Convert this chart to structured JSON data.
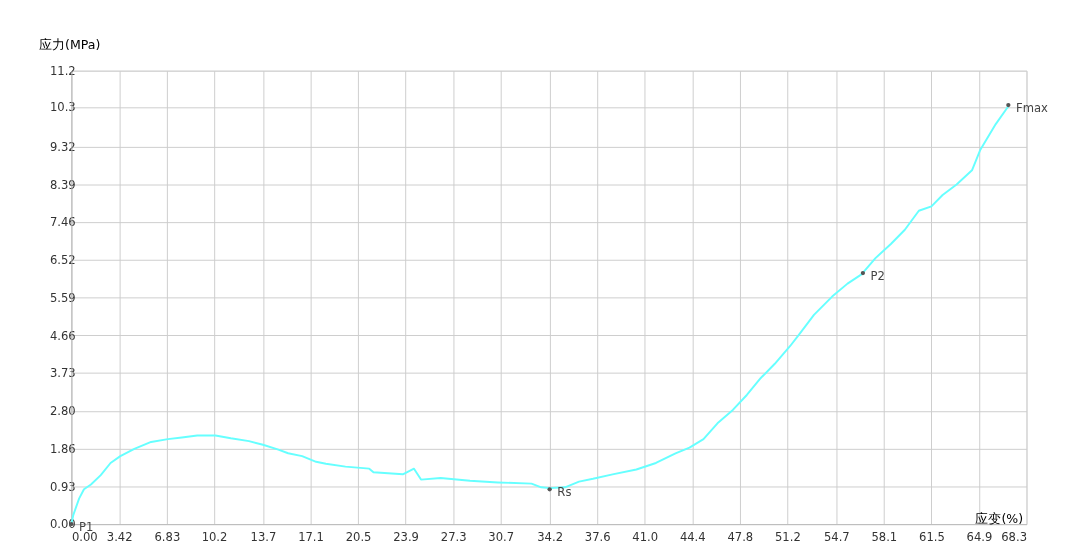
{
  "chart_data": {
    "type": "line",
    "xlabel": "应变(%)",
    "ylabel": "应力(MPa)",
    "x": [
      0,
      0.14,
      0.55,
      0.9,
      1.4,
      2.1,
      2.8,
      3.5,
      4.5,
      5.7,
      6.9,
      7.9,
      9.0,
      10.3,
      11.4,
      12.7,
      13.7,
      14.8,
      15.5,
      16.5,
      17.5,
      18.2,
      19.6,
      21.3,
      21.6,
      23.7,
      24.5,
      25.0,
      26.4,
      28.5,
      30.5,
      32.9,
      33.6,
      34.2,
      35.3,
      36.3,
      37.3,
      38.7,
      40.4,
      41.8,
      43.2,
      44.2,
      45.2,
      46.2,
      47.3,
      48.3,
      49.3,
      50.3,
      51.4,
      52.1,
      53.1,
      54.4,
      55.5,
      56.5,
      57.5,
      58.6,
      59.6,
      60.6,
      61.5,
      62.3,
      63.3,
      64.4,
      65.0,
      66.1,
      67.0
    ],
    "series": [
      {
        "color": "#66ffff",
        "values": [
          0,
          0.23,
          0.63,
          0.86,
          0.98,
          1.21,
          1.51,
          1.68,
          1.86,
          2.03,
          2.1,
          2.14,
          2.19,
          2.19,
          2.12,
          2.05,
          1.96,
          1.84,
          1.75,
          1.68,
          1.54,
          1.49,
          1.42,
          1.37,
          1.28,
          1.23,
          1.37,
          1.1,
          1.14,
          1.07,
          1.03,
          1.0,
          0.91,
          0.89,
          0.91,
          1.05,
          1.12,
          1.23,
          1.35,
          1.51,
          1.75,
          1.89,
          2.1,
          2.49,
          2.82,
          3.19,
          3.61,
          3.96,
          4.4,
          4.71,
          5.17,
          5.62,
          5.94,
          6.17,
          6.57,
          6.92,
          7.27,
          7.74,
          7.85,
          8.13,
          8.39,
          8.74,
          9.25,
          9.88,
          10.32
        ]
      }
    ],
    "xlim": [
      0,
      68.3
    ],
    "ylim": [
      0,
      11.2
    ],
    "xticks": [
      {
        "value": 0,
        "label": "0.00"
      },
      3.42,
      6.83,
      10.2,
      13.7,
      17.1,
      20.5,
      23.9,
      27.3,
      30.7,
      34.2,
      37.6,
      {
        "value": 41,
        "label": "41.0"
      },
      44.4,
      47.8,
      51.2,
      54.7,
      58.1,
      61.5,
      64.9,
      68.3
    ],
    "yticks": [
      {
        "value": 0,
        "label": "0.00"
      },
      0.93,
      1.86,
      {
        "value": 2.8,
        "label": "2.80"
      },
      3.73,
      4.66,
      5.59,
      6.52,
      7.46,
      8.39,
      9.32,
      10.3,
      11.2
    ],
    "annotations": [
      {
        "text": "P1",
        "x": 0,
        "y": 0
      },
      {
        "text": "Rs",
        "x": 34.2,
        "y": 0.86
      },
      {
        "text": "P2",
        "x": 56.6,
        "y": 6.2
      },
      {
        "text": "Fmax",
        "x": 67.0,
        "y": 10.35
      }
    ],
    "grid": true,
    "legend": false,
    "marker": "none",
    "line_style": "solid"
  }
}
